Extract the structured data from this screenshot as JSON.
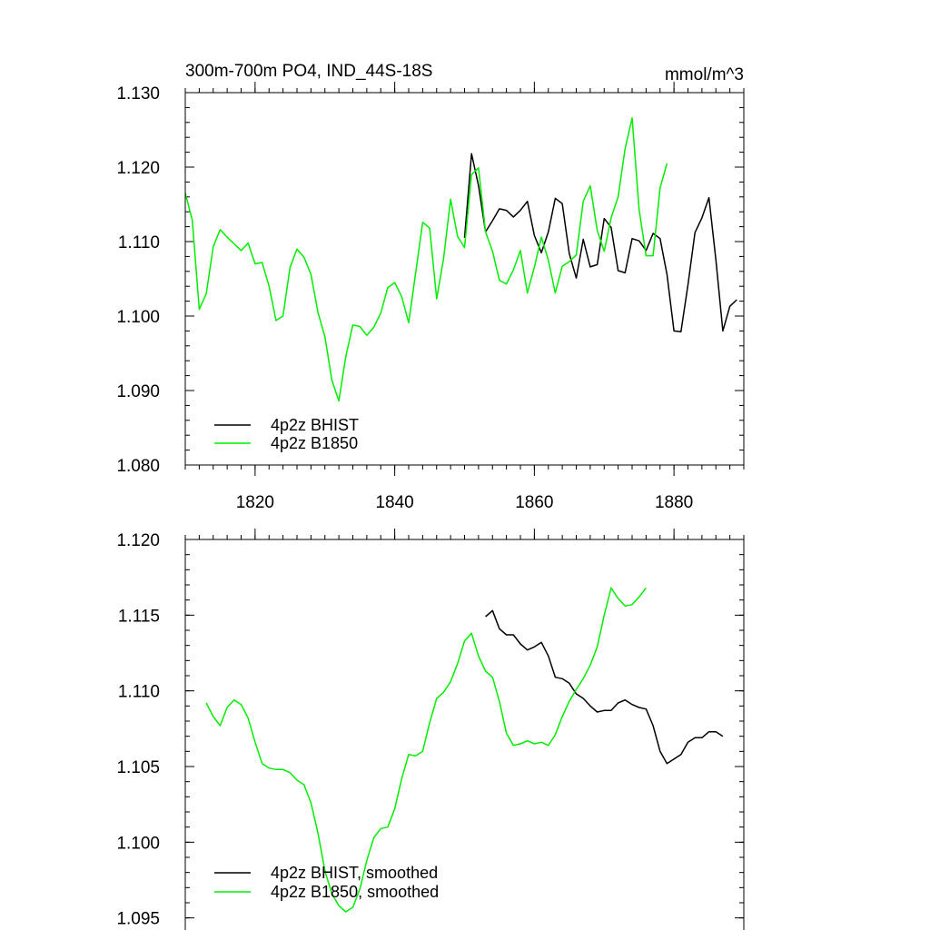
{
  "chart_data": [
    {
      "type": "line",
      "title": "300m-700m PO4, IND_44S-18S",
      "units_label": "mmol/m^3",
      "xlabel": "",
      "ylabel": "",
      "xlim": [
        1810,
        1890
      ],
      "ylim": [
        1.08,
        1.13
      ],
      "xticks": [
        1820,
        1840,
        1860,
        1880
      ],
      "xtick_labels": [
        "1820",
        "1840",
        "1860",
        "1880"
      ],
      "yticks": [
        1.08,
        1.09,
        1.1,
        1.11,
        1.12,
        1.13
      ],
      "ytick_labels": [
        "1.080",
        "1.090",
        "1.100",
        "1.110",
        "1.120",
        "1.130"
      ],
      "grid": false,
      "legend_position": "bottom-left",
      "series": [
        {
          "name": "4p2z BHIST",
          "color": "#000000",
          "x": [
            1850,
            1851,
            1852,
            1853,
            1854,
            1855,
            1856,
            1857,
            1858,
            1859,
            1860,
            1861,
            1862,
            1863,
            1864,
            1865,
            1866,
            1867,
            1868,
            1869,
            1870,
            1871,
            1872,
            1873,
            1874,
            1875,
            1876,
            1877,
            1878,
            1879,
            1880,
            1881,
            1882,
            1883,
            1884,
            1885,
            1886,
            1887,
            1888,
            1889
          ],
          "y": [
            1.1105,
            1.1218,
            1.1175,
            1.1113,
            1.1128,
            1.1144,
            1.1142,
            1.1133,
            1.1142,
            1.1154,
            1.1108,
            1.1085,
            1.1113,
            1.1158,
            1.1151,
            1.1084,
            1.1051,
            1.1103,
            1.1066,
            1.1069,
            1.1131,
            1.1119,
            1.1061,
            1.1058,
            1.1104,
            1.1101,
            1.1088,
            1.1111,
            1.1104,
            1.1056,
            1.098,
            1.0979,
            1.1042,
            1.1112,
            1.1132,
            1.1159,
            1.1075,
            1.098,
            1.1013,
            1.1022
          ]
        },
        {
          "name": "4p2z B1850",
          "color": "#00ee00",
          "x": [
            1810,
            1811,
            1812,
            1813,
            1814,
            1815,
            1816,
            1817,
            1818,
            1819,
            1820,
            1821,
            1822,
            1823,
            1824,
            1825,
            1826,
            1827,
            1828,
            1829,
            1830,
            1831,
            1832,
            1833,
            1834,
            1835,
            1836,
            1837,
            1838,
            1839,
            1840,
            1841,
            1842,
            1843,
            1844,
            1845,
            1846,
            1847,
            1848,
            1849,
            1850,
            1851,
            1852,
            1853,
            1854,
            1855,
            1856,
            1857,
            1858,
            1859,
            1860,
            1861,
            1862,
            1863,
            1864,
            1865,
            1866,
            1867,
            1868,
            1869,
            1870,
            1871,
            1872,
            1873,
            1874,
            1875,
            1876,
            1877,
            1878,
            1879
          ],
          "y": [
            1.1165,
            1.1129,
            1.1009,
            1.103,
            1.1093,
            1.1116,
            1.1106,
            1.1097,
            1.1088,
            1.1098,
            1.107,
            1.1072,
            1.104,
            1.0994,
            1.1,
            1.1065,
            1.109,
            1.1079,
            1.1056,
            1.1005,
            1.0972,
            1.0914,
            1.0886,
            1.0946,
            1.0988,
            1.0986,
            1.0974,
            1.0985,
            1.1004,
            1.1038,
            1.1045,
            1.1026,
            1.0991,
            1.1058,
            1.1126,
            1.1118,
            1.1023,
            1.1077,
            1.1157,
            1.1107,
            1.1092,
            1.119,
            1.1199,
            1.1113,
            1.1087,
            1.1048,
            1.1043,
            1.1062,
            1.1088,
            1.1031,
            1.1066,
            1.1106,
            1.1075,
            1.1031,
            1.1067,
            1.1073,
            1.1082,
            1.1154,
            1.1175,
            1.1115,
            1.1087,
            1.1132,
            1.116,
            1.1225,
            1.1266,
            1.1143,
            1.1081,
            1.1081,
            1.1172,
            1.1205
          ]
        }
      ]
    },
    {
      "type": "line",
      "title": "",
      "xlabel": "",
      "ylabel": "",
      "xlim": [
        1810,
        1890
      ],
      "ylim": [
        1.093,
        1.12
      ],
      "xticks": [
        1820,
        1840,
        1860,
        1880
      ],
      "yticks": [
        1.095,
        1.1,
        1.105,
        1.11,
        1.115,
        1.12
      ],
      "ytick_labels": [
        "1.095",
        "1.100",
        "1.105",
        "1.110",
        "1.115",
        "1.120"
      ],
      "grid": false,
      "legend_position": "bottom-left",
      "series": [
        {
          "name": "4p2z BHIST, smoothed",
          "color": "#000000",
          "x": [
            1853,
            1854,
            1855,
            1856,
            1857,
            1858,
            1859,
            1860,
            1861,
            1862,
            1863,
            1864,
            1865,
            1866,
            1867,
            1868,
            1869,
            1870,
            1871,
            1872,
            1873,
            1874,
            1875,
            1876,
            1877,
            1878,
            1879,
            1880,
            1881,
            1882,
            1883,
            1884,
            1885,
            1886,
            1887
          ],
          "y": [
            1.1149,
            1.1153,
            1.1141,
            1.1137,
            1.1137,
            1.1131,
            1.1127,
            1.1129,
            1.1132,
            1.1123,
            1.1109,
            1.1108,
            1.1105,
            1.1098,
            1.1095,
            1.109,
            1.1086,
            1.1087,
            1.1087,
            1.1092,
            1.1094,
            1.1091,
            1.1089,
            1.1088,
            1.1077,
            1.106,
            1.1052,
            1.1055,
            1.1058,
            1.1066,
            1.1069,
            1.1069,
            1.1073,
            1.1073,
            1.107
          ]
        },
        {
          "name": "4p2z B1850, smoothed",
          "color": "#00ee00",
          "x": [
            1813,
            1814,
            1815,
            1816,
            1817,
            1818,
            1819,
            1820,
            1821,
            1822,
            1823,
            1824,
            1825,
            1826,
            1827,
            1828,
            1829,
            1830,
            1831,
            1832,
            1833,
            1834,
            1835,
            1836,
            1837,
            1838,
            1839,
            1840,
            1841,
            1842,
            1843,
            1844,
            1845,
            1846,
            1847,
            1848,
            1849,
            1850,
            1851,
            1852,
            1853,
            1854,
            1855,
            1856,
            1857,
            1858,
            1859,
            1860,
            1861,
            1862,
            1863,
            1864,
            1865,
            1866,
            1867,
            1868,
            1869,
            1870,
            1871,
            1872,
            1873,
            1874,
            1875,
            1876
          ],
          "y": [
            1.1092,
            1.1083,
            1.1077,
            1.1089,
            1.1094,
            1.1091,
            1.1082,
            1.1066,
            1.1052,
            1.1049,
            1.1048,
            1.1048,
            1.1046,
            1.1041,
            1.1038,
            1.1026,
            1.1006,
            1.0981,
            1.0966,
            1.0958,
            1.0954,
            1.0957,
            1.0969,
            1.0988,
            1.1003,
            1.1009,
            1.101,
            1.1022,
            1.1042,
            1.1058,
            1.1057,
            1.106,
            1.1079,
            1.1095,
            1.1099,
            1.1106,
            1.1118,
            1.1133,
            1.1138,
            1.1123,
            1.1113,
            1.1109,
            1.1093,
            1.1072,
            1.1064,
            1.1065,
            1.1067,
            1.1065,
            1.1066,
            1.1064,
            1.1071,
            1.1083,
            1.1093,
            1.1101,
            1.1108,
            1.1117,
            1.1129,
            1.115,
            1.1168,
            1.1161,
            1.1156,
            1.1157,
            1.1162,
            1.1168
          ]
        }
      ]
    }
  ]
}
